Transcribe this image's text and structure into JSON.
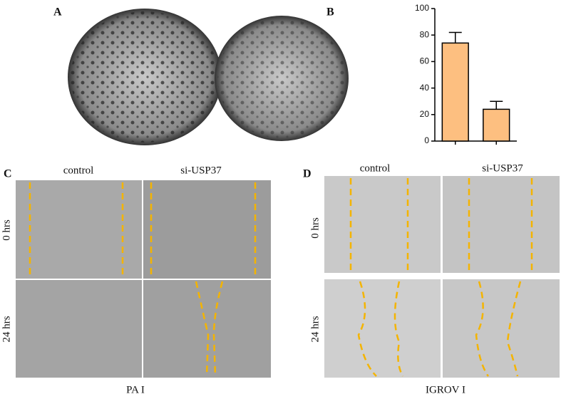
{
  "panels": {
    "a": "A",
    "b": "B",
    "c": "C",
    "d": "D"
  },
  "panel_c": {
    "columns": [
      "control",
      "si-USP37"
    ],
    "rows": [
      "0 hrs",
      "24 hrs"
    ],
    "caption": "PA I"
  },
  "panel_d": {
    "columns": [
      "control",
      "si-USP37"
    ],
    "rows": [
      "0 hrs",
      "24 hrs"
    ],
    "caption": "IGROV I"
  },
  "chart_data": {
    "type": "bar",
    "categories": [
      null,
      null
    ],
    "values": [
      74,
      24
    ],
    "errors": [
      8,
      6
    ],
    "color": "#fdbf80",
    "ylim": [
      0,
      100
    ],
    "yticks": [
      0,
      20,
      40,
      60,
      80,
      100
    ]
  }
}
